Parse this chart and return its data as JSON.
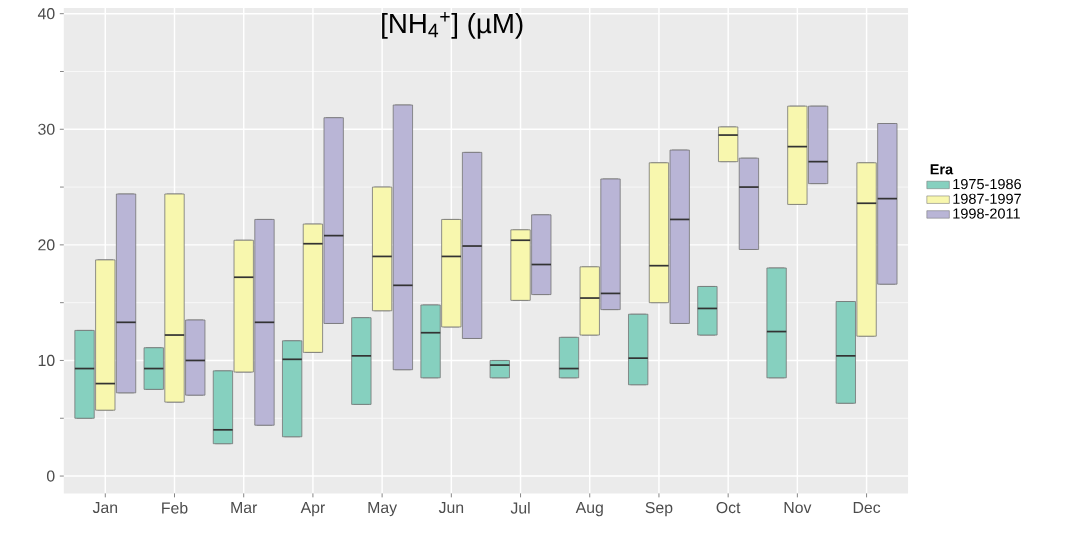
{
  "chart_data": {
    "type": "box",
    "title": "[NH$_{4}$$^{+}$] (µM)",
    "legend_title": "Era",
    "categories": [
      "Jan",
      "Feb",
      "Mar",
      "Apr",
      "May",
      "Jun",
      "Jul",
      "Aug",
      "Sep",
      "Oct",
      "Nov",
      "Dec"
    ],
    "ylim": [
      -1.5,
      40.5
    ],
    "yticks": [
      0,
      10,
      20,
      30,
      40
    ],
    "grid": true,
    "legend": "right",
    "series": [
      {
        "name": "1975-1986",
        "color": "#86d0bf",
        "boxes": [
          {
            "low": 5,
            "q1": 5,
            "median": 9.3,
            "q3": 12.6,
            "high": 12.6
          },
          {
            "low": 7.5,
            "q1": 7.5,
            "median": 9.3,
            "q3": 11.1,
            "high": 11.1
          },
          {
            "low": 2.8,
            "q1": 2.8,
            "median": 4,
            "q3": 9.1,
            "high": 9.1
          },
          {
            "low": 3.4,
            "q1": 3.4,
            "median": 10.1,
            "q3": 11.7,
            "high": 11.7
          },
          {
            "low": 6.2,
            "q1": 6.2,
            "median": 10.4,
            "q3": 13.7,
            "high": 13.7
          },
          {
            "low": 8.5,
            "q1": 8.5,
            "median": 12.4,
            "q3": 14.8,
            "high": 14.8
          },
          {
            "low": 8.5,
            "q1": 8.5,
            "median": 9.6,
            "q3": 10,
            "high": 10
          },
          {
            "low": 8.5,
            "q1": 8.5,
            "median": 9.3,
            "q3": 12,
            "high": 12
          },
          {
            "low": 7.9,
            "q1": 7.9,
            "median": 10.2,
            "q3": 14,
            "high": 14
          },
          {
            "low": 12.2,
            "q1": 12.2,
            "median": 14.5,
            "q3": 16.4,
            "high": 16.4
          },
          {
            "low": 8.5,
            "q1": 8.5,
            "median": 12.5,
            "q3": 18,
            "high": 18
          },
          {
            "low": 6.3,
            "q1": 6.3,
            "median": 10.4,
            "q3": 15.1,
            "high": 15.1
          }
        ]
      },
      {
        "name": "1987-1997",
        "color": "#f8f7ae",
        "boxes": [
          {
            "low": 5.7,
            "q1": 5.7,
            "median": 8,
            "q3": 18.7,
            "high": 18.7
          },
          {
            "low": 6.4,
            "q1": 6.4,
            "median": 12.2,
            "q3": 24.4,
            "high": 24.4
          },
          {
            "low": 9,
            "q1": 9,
            "median": 17.2,
            "q3": 20.4,
            "high": 20.4
          },
          {
            "low": 10.7,
            "q1": 10.7,
            "median": 20.1,
            "q3": 21.8,
            "high": 21.8
          },
          {
            "low": 14.3,
            "q1": 14.3,
            "median": 19,
            "q3": 25,
            "high": 25
          },
          {
            "low": 12.9,
            "q1": 12.9,
            "median": 19,
            "q3": 22.2,
            "high": 22.2
          },
          {
            "low": 15.2,
            "q1": 15.2,
            "median": 20.4,
            "q3": 21.3,
            "high": 21.3
          },
          {
            "low": 12.2,
            "q1": 12.2,
            "median": 15.4,
            "q3": 18.1,
            "high": 18.1
          },
          {
            "low": 15,
            "q1": 15,
            "median": 18.2,
            "q3": 27.1,
            "high": 27.1
          },
          {
            "low": 27.2,
            "q1": 27.2,
            "median": 29.5,
            "q3": 30.2,
            "high": 30.2
          },
          {
            "low": 23.5,
            "q1": 23.5,
            "median": 28.5,
            "q3": 32,
            "high": 32
          },
          {
            "low": 12.1,
            "q1": 12.1,
            "median": 23.6,
            "q3": 27.1,
            "high": 27.1
          }
        ]
      },
      {
        "name": "1998-2011",
        "color": "#b9b5d6",
        "boxes": [
          {
            "low": 7.2,
            "q1": 7.2,
            "median": 13.3,
            "q3": 24.4,
            "high": 24.4
          },
          {
            "low": 7,
            "q1": 7,
            "median": 10,
            "q3": 13.5,
            "high": 13.5
          },
          {
            "low": 4.4,
            "q1": 4.4,
            "median": 13.3,
            "q3": 22.2,
            "high": 22.2
          },
          {
            "low": 13.2,
            "q1": 13.2,
            "median": 20.8,
            "q3": 31,
            "high": 31
          },
          {
            "low": 9.2,
            "q1": 9.2,
            "median": 16.5,
            "q3": 32.1,
            "high": 32.1
          },
          {
            "low": 11.9,
            "q1": 11.9,
            "median": 19.9,
            "q3": 28,
            "high": 28
          },
          {
            "low": 15.7,
            "q1": 15.7,
            "median": 18.3,
            "q3": 22.6,
            "high": 22.6
          },
          {
            "low": 14.4,
            "q1": 14.4,
            "median": 15.8,
            "q3": 25.7,
            "high": 25.7
          },
          {
            "low": 13.2,
            "q1": 13.2,
            "median": 22.2,
            "q3": 28.2,
            "high": 28.2
          },
          {
            "low": 19.6,
            "q1": 19.6,
            "median": 25,
            "q3": 27.5,
            "high": 27.5
          },
          {
            "low": 25.3,
            "q1": 25.3,
            "median": 27.2,
            "q3": 32,
            "high": 32
          },
          {
            "low": 16.6,
            "q1": 16.6,
            "median": 24,
            "q3": 30.5,
            "high": 30.5
          }
        ]
      }
    ]
  }
}
